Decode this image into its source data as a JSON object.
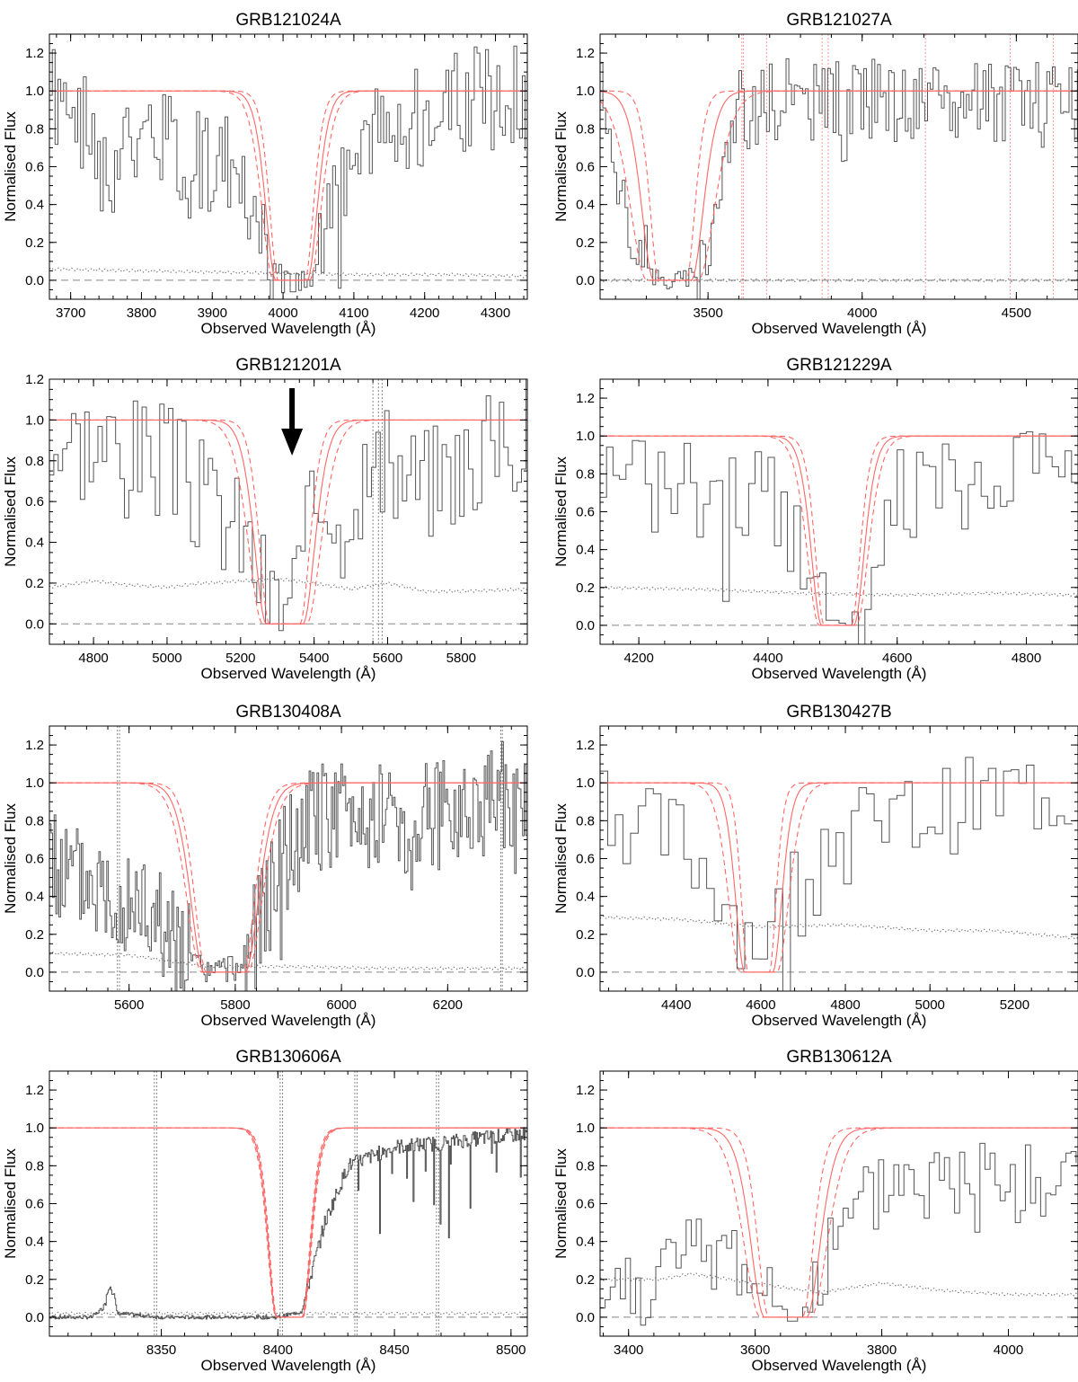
{
  "figure": {
    "ylabel": "Normalised Flux",
    "xlabel": "Observed Wavelength (Å)"
  },
  "colors": {
    "spectrum": "#555555",
    "error": "#777777",
    "model": "#ff6666",
    "axes": "#000000"
  },
  "chart_data": [
    {
      "type": "line",
      "title": "GRB121024A",
      "xlabel": "Observed Wavelength (Å)",
      "ylabel": "Normalised Flux",
      "xlim": [
        3670,
        4345
      ],
      "ylim": [
        -0.1,
        1.3
      ],
      "xticks": [
        3700,
        3800,
        3900,
        4000,
        4100,
        4200,
        4300
      ],
      "yticks": [
        0.0,
        0.2,
        0.4,
        0.6,
        0.8,
        1.0,
        1.2
      ],
      "model": {
        "center": 4012,
        "width": 40,
        "width_low": 34,
        "width_high": 46
      },
      "spectrum_step": 4,
      "noise": 0.3,
      "spectrum_seed": 1,
      "error_level": 0.05,
      "vlines": [],
      "arrow_x": null,
      "series": [
        {
          "values": [
            [
              3670,
              0.95
            ],
            [
              3700,
              0.92
            ],
            [
              3740,
              0.6
            ],
            [
              3800,
              0.75
            ],
            [
              3850,
              0.7
            ],
            [
              3900,
              0.65
            ],
            [
              3950,
              0.45
            ],
            [
              3975,
              0.2
            ],
            [
              3990,
              0.02
            ],
            [
              4000,
              0.0
            ],
            [
              4040,
              0.0
            ],
            [
              4060,
              0.25
            ],
            [
              4080,
              0.45
            ],
            [
              4100,
              0.65
            ],
            [
              4150,
              0.8
            ],
            [
              4200,
              0.88
            ],
            [
              4250,
              0.93
            ],
            [
              4300,
              0.95
            ],
            [
              4345,
              0.97
            ]
          ]
        },
        {
          "values": [
            [
              3670,
              0.06
            ],
            [
              3800,
              0.05
            ],
            [
              3950,
              0.04
            ],
            [
              4100,
              0.03
            ],
            [
              4250,
              0.03
            ],
            [
              4345,
              0.02
            ]
          ]
        }
      ]
    },
    {
      "type": "line",
      "title": "GRB121027A",
      "xlabel": "Observed Wavelength (Å)",
      "ylabel": "Normalised Flux",
      "xlim": [
        3150,
        4700
      ],
      "ylim": [
        -0.1,
        1.3
      ],
      "xticks": [
        3500,
        4000,
        4500
      ],
      "yticks": [
        0.0,
        0.2,
        0.4,
        0.6,
        0.8,
        1.0,
        1.2
      ],
      "model": {
        "center": 3385,
        "width": 110,
        "width_low": 80,
        "width_high": 150
      },
      "spectrum_step": 9,
      "noise": 0.22,
      "spectrum_seed": 2,
      "error_level": 0.0,
      "vlines": [
        3610,
        3615,
        3690,
        3870,
        3890,
        4205,
        4480,
        4620
      ],
      "arrow_x": null,
      "series": [
        {
          "values": [
            [
              3150,
              1.2
            ],
            [
              3200,
              0.4
            ],
            [
              3260,
              0.3
            ],
            [
              3300,
              0.05
            ],
            [
              3350,
              0.0
            ],
            [
              3450,
              0.02
            ],
            [
              3500,
              0.25
            ],
            [
              3560,
              0.75
            ],
            [
              3600,
              0.9
            ],
            [
              3700,
              0.95
            ],
            [
              3800,
              0.95
            ],
            [
              3900,
              0.95
            ],
            [
              4000,
              0.95
            ],
            [
              4200,
              0.95
            ],
            [
              4400,
              0.95
            ],
            [
              4600,
              0.95
            ],
            [
              4700,
              0.93
            ]
          ]
        },
        {
          "values": [
            [
              3150,
              0.0
            ],
            [
              4700,
              0.0
            ]
          ]
        }
      ]
    },
    {
      "type": "line",
      "title": "GRB121201A",
      "xlabel": "Observed Wavelength (Å)",
      "ylabel": "Normalised Flux",
      "xlim": [
        4680,
        5980
      ],
      "ylim": [
        -0.1,
        1.2
      ],
      "xticks": [
        4800,
        5000,
        5200,
        5400,
        5600,
        5800
      ],
      "yticks": [
        0.0,
        0.2,
        0.4,
        0.6,
        0.8,
        1.0,
        1.2
      ],
      "model": {
        "center": 5320,
        "width": 90,
        "width_low": 75,
        "width_high": 108
      },
      "spectrum_step": 12,
      "noise": 0.3,
      "spectrum_seed": 3,
      "error_level": 0.19,
      "vlines": [
        5560,
        5575,
        5585
      ],
      "arrow_x": 5340,
      "series": [
        {
          "values": [
            [
              4680,
              0.9
            ],
            [
              4800,
              0.9
            ],
            [
              4900,
              0.85
            ],
            [
              5000,
              0.8
            ],
            [
              5100,
              0.6
            ],
            [
              5200,
              0.45
            ],
            [
              5280,
              0.1
            ],
            [
              5320,
              0.1
            ],
            [
              5360,
              0.25
            ],
            [
              5400,
              0.6
            ],
            [
              5500,
              0.7
            ],
            [
              5600,
              0.75
            ],
            [
              5700,
              0.7
            ],
            [
              5800,
              0.8
            ],
            [
              5980,
              0.95
            ]
          ]
        },
        {
          "values": [
            [
              4680,
              0.18
            ],
            [
              4800,
              0.21
            ],
            [
              4900,
              0.19
            ],
            [
              5000,
              0.18
            ],
            [
              5100,
              0.2
            ],
            [
              5200,
              0.21
            ],
            [
              5300,
              0.22
            ],
            [
              5400,
              0.2
            ],
            [
              5500,
              0.17
            ],
            [
              5600,
              0.2
            ],
            [
              5700,
              0.16
            ],
            [
              5800,
              0.16
            ],
            [
              5980,
              0.17
            ]
          ]
        }
      ]
    },
    {
      "type": "line",
      "title": "GRB121229A",
      "xlabel": "Observed Wavelength (Å)",
      "ylabel": "Normalised Flux",
      "xlim": [
        4140,
        4880
      ],
      "ylim": [
        -0.1,
        1.3
      ],
      "xticks": [
        4200,
        4400,
        4600,
        4800
      ],
      "yticks": [
        0.0,
        0.2,
        0.4,
        0.6,
        0.8,
        1.0,
        1.2
      ],
      "model": {
        "center": 4508,
        "width": 45,
        "width_low": 38,
        "width_high": 52
      },
      "spectrum_step": 10,
      "noise": 0.25,
      "spectrum_seed": 4,
      "error_level": 0.19,
      "vlines": [],
      "arrow_x": null,
      "series": [
        {
          "values": [
            [
              4140,
              0.9
            ],
            [
              4200,
              0.85
            ],
            [
              4300,
              0.7
            ],
            [
              4400,
              0.7
            ],
            [
              4450,
              0.4
            ],
            [
              4480,
              0.1
            ],
            [
              4500,
              0.0
            ],
            [
              4540,
              0.1
            ],
            [
              4560,
              0.45
            ],
            [
              4600,
              0.7
            ],
            [
              4700,
              0.75
            ],
            [
              4800,
              0.85
            ],
            [
              4880,
              0.95
            ]
          ]
        },
        {
          "values": [
            [
              4140,
              0.2
            ],
            [
              4300,
              0.19
            ],
            [
              4450,
              0.17
            ],
            [
              4600,
              0.16
            ],
            [
              4750,
              0.17
            ],
            [
              4880,
              0.16
            ]
          ]
        }
      ]
    },
    {
      "type": "line",
      "title": "GRB130408A",
      "xlabel": "Observed Wavelength (Å)",
      "ylabel": "Normalised Flux",
      "xlim": [
        5450,
        6350
      ],
      "ylim": [
        -0.1,
        1.3
      ],
      "xticks": [
        5600,
        5800,
        6000,
        6200
      ],
      "yticks": [
        0.0,
        0.2,
        0.4,
        0.6,
        0.8,
        1.0,
        1.2
      ],
      "model": {
        "center": 5780,
        "width": 70,
        "width_low": 62,
        "width_high": 78
      },
      "spectrum_step": 3,
      "noise": 0.3,
      "spectrum_seed": 5,
      "error_level": 0.02,
      "vlines": [
        5578,
        5582,
        6300,
        6303
      ],
      "arrow_x": null,
      "series": [
        {
          "values": [
            [
              5450,
              0.55
            ],
            [
              5550,
              0.45
            ],
            [
              5650,
              0.3
            ],
            [
              5720,
              0.05
            ],
            [
              5750,
              0.0
            ],
            [
              5810,
              0.03
            ],
            [
              5850,
              0.3
            ],
            [
              5900,
              0.65
            ],
            [
              5950,
              0.8
            ],
            [
              6050,
              0.85
            ],
            [
              6150,
              0.8
            ],
            [
              6250,
              0.9
            ],
            [
              6350,
              0.95
            ]
          ]
        },
        {
          "values": [
            [
              5450,
              0.1
            ],
            [
              5600,
              0.09
            ],
            [
              5750,
              0.03
            ],
            [
              5900,
              0.03
            ],
            [
              6100,
              0.02
            ],
            [
              6350,
              0.02
            ]
          ]
        }
      ]
    },
    {
      "type": "line",
      "title": "GRB130427B",
      "xlabel": "Observed Wavelength (Å)",
      "ylabel": "Normalised Flux",
      "xlim": [
        4220,
        5350
      ],
      "ylim": [
        -0.1,
        1.3
      ],
      "xticks": [
        4400,
        4600,
        4800,
        5000,
        5200
      ],
      "yticks": [
        0.0,
        0.2,
        0.4,
        0.6,
        0.8,
        1.0,
        1.2
      ],
      "model": {
        "center": 4595,
        "width": 60,
        "width_low": 45,
        "width_high": 78
      },
      "spectrum_step": 18,
      "noise": 0.25,
      "spectrum_seed": 6,
      "error_level": 0.26,
      "vlines": [],
      "arrow_x": null,
      "series": [
        {
          "values": [
            [
              4220,
              0.95
            ],
            [
              4300,
              0.75
            ],
            [
              4400,
              0.7
            ],
            [
              4500,
              0.45
            ],
            [
              4560,
              0.2
            ],
            [
              4620,
              0.2
            ],
            [
              4680,
              0.5
            ],
            [
              4750,
              0.75
            ],
            [
              4850,
              0.75
            ],
            [
              5000,
              0.85
            ],
            [
              5200,
              0.95
            ],
            [
              5350,
              0.95
            ]
          ]
        },
        {
          "values": [
            [
              4220,
              0.29
            ],
            [
              4400,
              0.28
            ],
            [
              4600,
              0.24
            ],
            [
              4800,
              0.25
            ],
            [
              5000,
              0.22
            ],
            [
              5150,
              0.22
            ],
            [
              5350,
              0.18
            ]
          ]
        }
      ]
    },
    {
      "type": "line",
      "title": "GRB130606A",
      "xlabel": "Observed Wavelength (Å)",
      "ylabel": "Normalised Flux",
      "xlim": [
        8302,
        8507
      ],
      "ylim": [
        -0.1,
        1.3
      ],
      "xticks": [
        8350,
        8400,
        8450,
        8500
      ],
      "yticks": [
        0.0,
        0.2,
        0.4,
        0.6,
        0.8,
        1.0,
        1.2
      ],
      "model": {
        "center": 8405,
        "width": 10,
        "width_low": 9.6,
        "width_high": 10.4
      },
      "spectrum_step": 0.4,
      "noise": 0.04,
      "spectrum_seed": 7,
      "error_level": 0.02,
      "vlines": [
        8347,
        8348,
        8401,
        8402,
        8433,
        8434,
        8468,
        8469
      ],
      "arrow_x": null,
      "series": [
        {
          "values": [
            [
              8302,
              0.0
            ],
            [
              8320,
              0.0
            ],
            [
              8325,
              0.05
            ],
            [
              8328,
              0.2
            ],
            [
              8331,
              0.02
            ],
            [
              8350,
              0.0
            ],
            [
              8400,
              0.0
            ],
            [
              8410,
              0.03
            ],
            [
              8420,
              0.5
            ],
            [
              8430,
              0.8
            ],
            [
              8450,
              0.9
            ],
            [
              8470,
              0.92
            ],
            [
              8490,
              0.95
            ],
            [
              8507,
              0.97
            ]
          ]
        },
        {
          "values": [
            [
              8302,
              0.02
            ],
            [
              8507,
              0.02
            ]
          ]
        }
      ]
    },
    {
      "type": "line",
      "title": "GRB130612A",
      "xlabel": "Observed Wavelength (Å)",
      "ylabel": "Normalised Flux",
      "xlim": [
        3355,
        4110
      ],
      "ylim": [
        -0.1,
        1.3
      ],
      "xticks": [
        3400,
        3600,
        3800,
        4000
      ],
      "yticks": [
        0.0,
        0.2,
        0.4,
        0.6,
        0.8,
        1.0,
        1.2
      ],
      "model": {
        "center": 3648,
        "width": 60,
        "width_low": 48,
        "width_high": 72
      },
      "spectrum_step": 8,
      "noise": 0.25,
      "spectrum_seed": 8,
      "error_level": 0.19,
      "vlines": [],
      "arrow_x": null,
      "series": [
        {
          "values": [
            [
              3355,
              0.1
            ],
            [
              3450,
              0.25
            ],
            [
              3550,
              0.35
            ],
            [
              3600,
              0.2
            ],
            [
              3640,
              0.03
            ],
            [
              3680,
              0.05
            ],
            [
              3720,
              0.35
            ],
            [
              3780,
              0.6
            ],
            [
              3820,
              0.75
            ],
            [
              3880,
              0.7
            ],
            [
              3950,
              0.75
            ],
            [
              4050,
              0.7
            ],
            [
              4110,
              0.75
            ]
          ]
        },
        {
          "values": [
            [
              3355,
              0.2
            ],
            [
              3450,
              0.2
            ],
            [
              3500,
              0.23
            ],
            [
              3600,
              0.18
            ],
            [
              3700,
              0.13
            ],
            [
              3800,
              0.18
            ],
            [
              3900,
              0.14
            ],
            [
              4000,
              0.12
            ],
            [
              4110,
              0.12
            ]
          ]
        }
      ]
    }
  ]
}
